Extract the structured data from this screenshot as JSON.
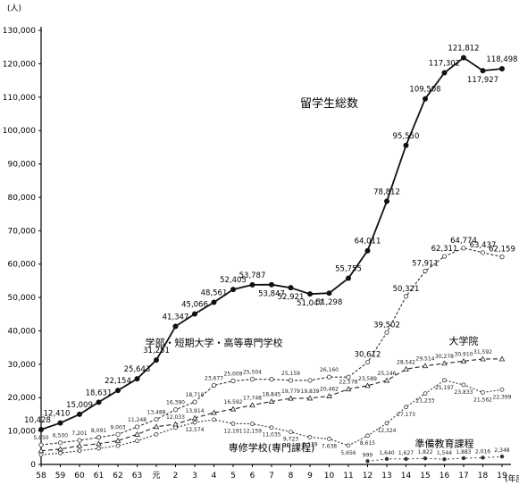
{
  "chart_data": {
    "type": "line",
    "ylabel": "(人)",
    "xlabel": "(年度)",
    "x": [
      "58",
      "59",
      "60",
      "61",
      "62",
      "63",
      "元",
      "2",
      "3",
      "4",
      "5",
      "6",
      "7",
      "8",
      "9",
      "10",
      "11",
      "12",
      "13",
      "14",
      "15",
      "16",
      "17",
      "18",
      "19"
    ],
    "ylim": [
      0,
      130000
    ],
    "yticks": [
      "0",
      "10,000",
      "20,000",
      "30,000",
      "40,000",
      "50,000",
      "60,000",
      "70,000",
      "80,000",
      "90,000",
      "100,000",
      "110,000",
      "120,000",
      "130,000"
    ],
    "series": [
      {
        "name": "留学生総数",
        "values": [
          10428,
          12410,
          15009,
          18631,
          22154,
          25643,
          31251,
          41347,
          45066,
          48561,
          52405,
          53787,
          53847,
          52921,
          51047,
          51298,
          55755,
          64011,
          78812,
          95550,
          109508,
          117302,
          121812,
          117927,
          118498
        ],
        "labels": [
          "10,428",
          "12,410",
          "15,009",
          "18,631",
          "22,154",
          "25,643",
          "31,251",
          "41,347",
          "45,066",
          "48,561",
          "52,405",
          "53,787",
          "53,847",
          "52,921",
          "51,047",
          "51,298",
          "55,755",
          "64,011",
          "78,812",
          "95,550",
          "109,508",
          "117,302",
          "121,812",
          "117,927",
          "118,498"
        ]
      },
      {
        "name": "学部・短期大学・高等専門学校",
        "values": [
          5850,
          6500,
          7201,
          8091,
          9003,
          11248,
          13488,
          16390,
          18710,
          23677,
          25009,
          25504,
          25504,
          25159,
          25159,
          26160,
          26160,
          30612,
          39502,
          50321,
          57911,
          62311,
          64774,
          63437,
          62159
        ],
        "labels": [
          "5,850",
          "6,500",
          "7,201",
          "8,091",
          "9,003",
          "11,248",
          "13,488",
          "16,390",
          "18,710",
          "23,677",
          "25,009",
          "25,504",
          "",
          "25,159",
          "",
          "26,160",
          "",
          "30,612",
          "39,502",
          "50,321",
          "57,911",
          "62,311",
          "64,774",
          "63,437",
          "62,159"
        ]
      },
      {
        "name": "大学院",
        "values": [
          4100,
          4600,
          5600,
          6200,
          7100,
          9003,
          11300,
          12033,
          13914,
          15500,
          16592,
          17748,
          18845,
          19779,
          19839,
          20462,
          22578,
          23589,
          25146,
          28542,
          29514,
          30278,
          30910,
          31592,
          31592
        ],
        "labels": [
          "",
          "",
          "",
          "",
          "",
          "",
          "",
          "12,033",
          "13,914",
          "",
          "16,592",
          "17,748",
          "18,845",
          "19,779",
          "19,839",
          "20,462",
          "22,578",
          "23,589",
          "25,146",
          "28,542",
          "29,514",
          "30,278",
          "30,910",
          "31,592",
          ""
        ]
      },
      {
        "name": "専修学校(専門課程)",
        "values": [
          2900,
          3400,
          4100,
          4800,
          5600,
          7050,
          9000,
          11000,
          12574,
          13400,
          12191,
          12159,
          11035,
          9723,
          8139,
          7638,
          5656,
          8615,
          12324,
          17173,
          21233,
          25197,
          23833,
          21562,
          22399
        ],
        "labels": [
          "",
          "",
          "",
          "",
          "",
          "",
          "",
          "",
          "12,574",
          "",
          "12,191",
          "12,159",
          "11,035",
          "9,723",
          "8,139",
          "7,638",
          "5,656",
          "8,615",
          "12,324",
          "17,173",
          "21,233",
          "25,197",
          "23,833",
          "21,562",
          "22,399"
        ]
      },
      {
        "name": "準備教育課程",
        "values": [
          null,
          null,
          null,
          null,
          null,
          null,
          null,
          null,
          null,
          null,
          null,
          null,
          null,
          null,
          null,
          null,
          null,
          999,
          1640,
          1627,
          1822,
          1544,
          1883,
          2016,
          2348
        ],
        "labels": [
          "",
          "",
          "",
          "",
          "",
          "",
          "",
          "",
          "",
          "",
          "",
          "",
          "",
          "",
          "",
          "",
          "",
          "999",
          "1,640",
          "1,627",
          "1,822",
          "1,544",
          "1,883",
          "2,016",
          "2,348"
        ]
      }
    ],
    "grid": false,
    "legend": "inline labels"
  }
}
